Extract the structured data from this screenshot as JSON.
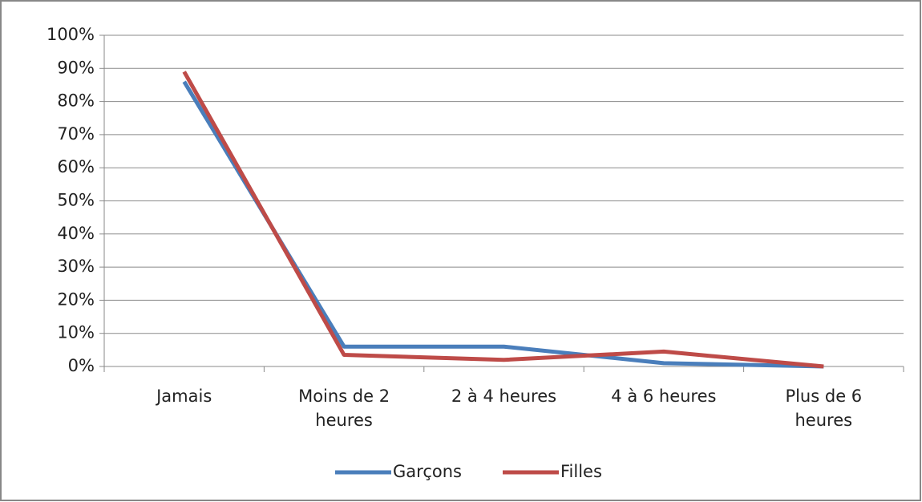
{
  "chart_data": {
    "type": "line",
    "categories": [
      "Jamais",
      "Moins de 2 heures",
      "2 à 4 heures",
      "4 à 6 heures",
      "Plus de 6 heures"
    ],
    "series": [
      {
        "name": "Garçons",
        "color": "#4a7ebb",
        "values": [
          86,
          6,
          6,
          1,
          0
        ]
      },
      {
        "name": "Filles",
        "color": "#be4b48",
        "values": [
          89,
          3.5,
          2,
          4.5,
          0
        ]
      }
    ],
    "ylim": [
      0,
      100
    ],
    "yticks": [
      {
        "value": 0,
        "label": "0%"
      },
      {
        "value": 10,
        "label": "10%"
      },
      {
        "value": 20,
        "label": "20%"
      },
      {
        "value": 30,
        "label": "30%"
      },
      {
        "value": 40,
        "label": "40%"
      },
      {
        "value": 50,
        "label": "50%"
      },
      {
        "value": 60,
        "label": "60%"
      },
      {
        "value": 70,
        "label": "70%"
      },
      {
        "value": 80,
        "label": "80%"
      },
      {
        "value": 90,
        "label": "90%"
      },
      {
        "value": 100,
        "label": "100%"
      }
    ],
    "grid": true,
    "legend": "bottom"
  }
}
